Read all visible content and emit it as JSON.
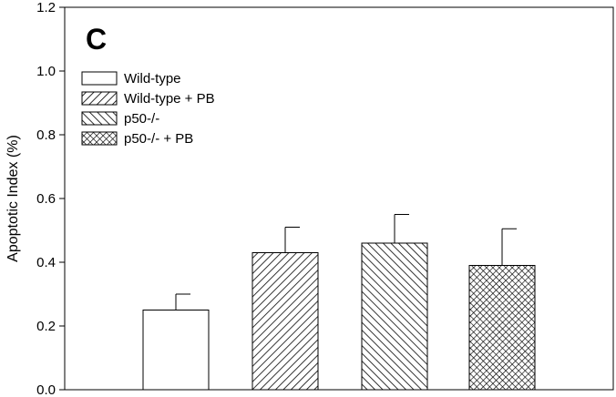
{
  "chart_data": {
    "type": "bar",
    "panel_label": "C",
    "ylabel": "Apoptotic Index (%)",
    "xlabel": "",
    "ylim": [
      0.0,
      1.2
    ],
    "yticks": [
      0.0,
      0.2,
      0.4,
      0.6,
      0.8,
      1.0,
      1.2
    ],
    "ytick_labels": [
      "0.0",
      "0.2",
      "0.4",
      "0.6",
      "0.8",
      "1.0",
      "1.2"
    ],
    "categories": [
      "Wild-type",
      "Wild-type + PB",
      "p50-/-",
      "p50-/- + PB"
    ],
    "values": [
      0.25,
      0.43,
      0.46,
      0.39
    ],
    "errors": [
      0.05,
      0.08,
      0.09,
      0.115
    ],
    "patterns": [
      "none",
      "diagonal-forward",
      "diagonal-backward",
      "crosshatch"
    ],
    "legend": {
      "placement": "top-left",
      "entries": [
        "Wild-type",
        "Wild-type + PB",
        "p50-/-",
        "p50-/- + PB"
      ]
    },
    "grid": false,
    "colors": {
      "bar_stroke": "#000000",
      "bar_fill": "#ffffff",
      "pattern": "#000000"
    }
  }
}
